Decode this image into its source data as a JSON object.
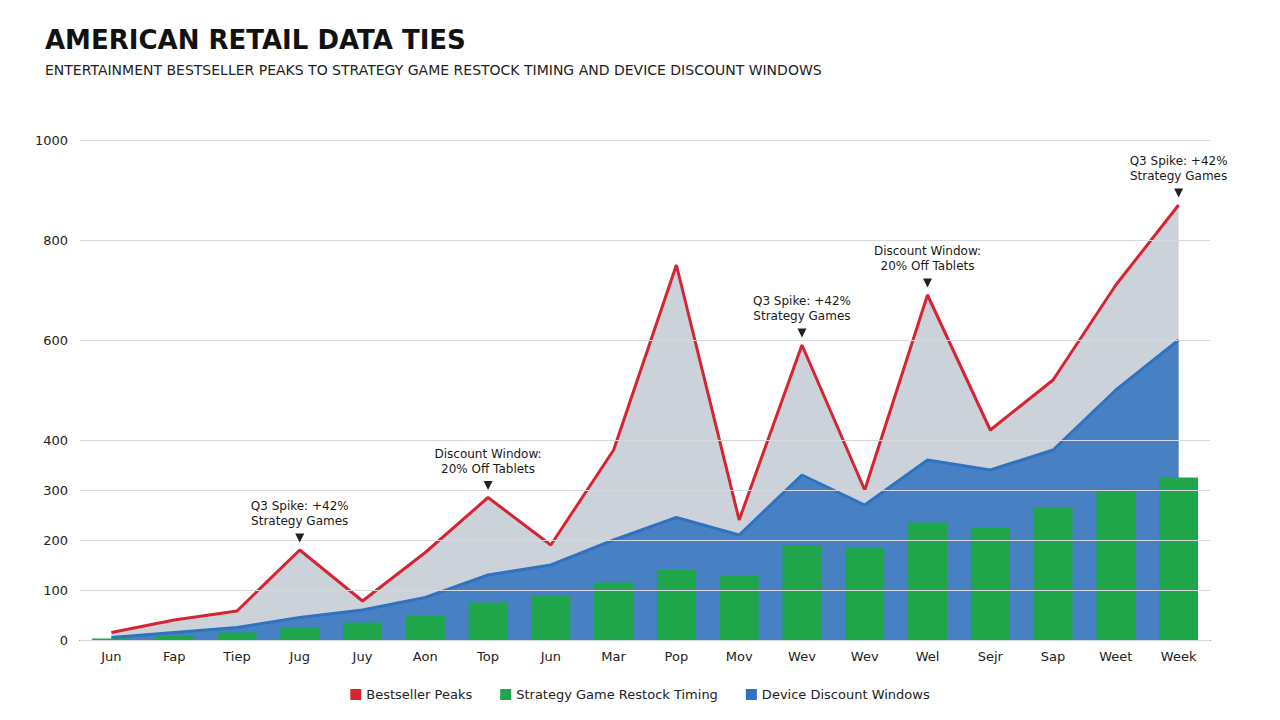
{
  "chart_data": {
    "type": "line",
    "title": "AMERICAN RETAIL DATA TIES",
    "subtitle": "ENTERTAINMENT BESTSELLER PEAKS TO STRATEGY GAME RESTOCK TIMING AND DEVICE DISCOUNT WINDOWS",
    "categories": [
      "Jun",
      "Fap",
      "Tiep",
      "Jug",
      "Juy",
      "Aon",
      "Top",
      "Jun",
      "Mar",
      "Pop",
      "Mov",
      "Wev",
      "Wev",
      "Wel",
      "Sejr",
      "Sap",
      "Weet",
      "Week"
    ],
    "series": [
      {
        "name": "Bestseller Peaks",
        "type": "area",
        "color": "#d62433",
        "values": [
          15,
          40,
          58,
          180,
          78,
          175,
          285,
          190,
          380,
          750,
          240,
          590,
          300,
          690,
          420,
          520,
          710,
          870
        ]
      },
      {
        "name": "Strategy Game Restock Timing",
        "type": "bar",
        "color": "#1fa64a",
        "values": [
          3,
          8,
          15,
          25,
          35,
          50,
          75,
          90,
          115,
          140,
          130,
          190,
          185,
          235,
          225,
          265,
          300,
          325
        ]
      },
      {
        "name": "Device Discount Windows",
        "type": "area",
        "color": "#2f73c0",
        "values": [
          5,
          15,
          25,
          45,
          60,
          85,
          130,
          150,
          200,
          245,
          210,
          330,
          270,
          360,
          340,
          380,
          500,
          600
        ]
      }
    ],
    "ylim": [
      0,
      1000
    ],
    "yticks": [
      0,
      100,
      200,
      300,
      400,
      600,
      800,
      1000
    ],
    "grid": true,
    "legend": "bottom",
    "stacked": false,
    "annotations": [
      {
        "lines": [
          "Q3 Spike: +42%",
          "Strategy Games"
        ],
        "series": "Bestseller Peaks",
        "index": 3
      },
      {
        "lines": [
          "Discount Window:",
          "20% Off Tablets"
        ],
        "series": "Bestseller Peaks",
        "index": 6
      },
      {
        "lines": [
          "Q3 Spike: +42%",
          "Strategy Games"
        ],
        "series": "Bestseller Peaks",
        "index": 11
      },
      {
        "lines": [
          "Discount Window:",
          "20% Off Tablets"
        ],
        "series": "Bestseller Peaks",
        "index": 13
      },
      {
        "lines": [
          "Q3 Spike: +42%",
          "Strategy Games"
        ],
        "series": "Bestseller Peaks",
        "index": 17
      }
    ]
  }
}
